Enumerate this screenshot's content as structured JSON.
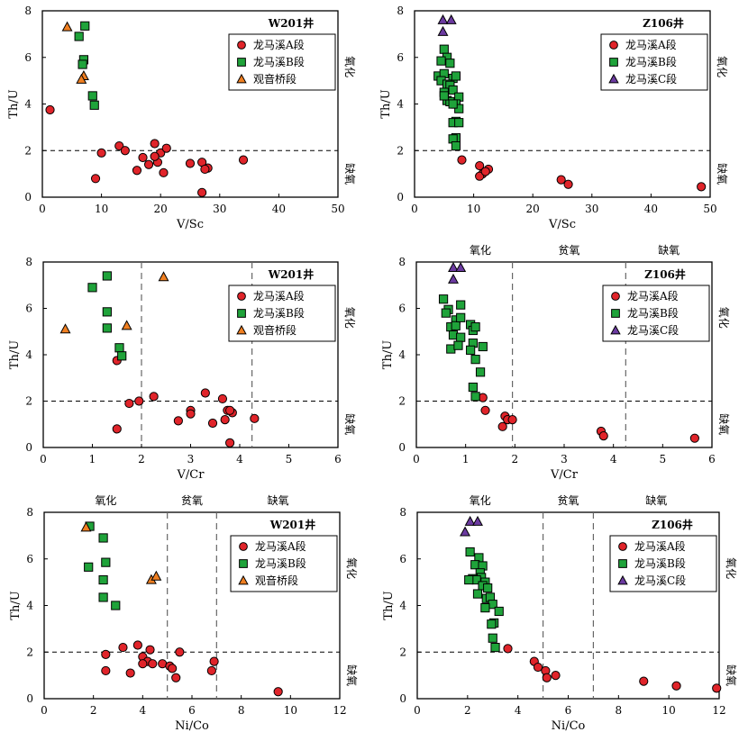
{
  "colors": {
    "seriesA": "#e0242a",
    "seriesB": "#1fa33a",
    "seriesC": "#6b3aa0",
    "seriesG": "#f07f21"
  },
  "chart_data": [
    {
      "type": "scatter",
      "well": "W201井",
      "xlabel": "V/Sc",
      "ylabel": "Th/U",
      "xlim": [
        0,
        50
      ],
      "ylim": [
        0,
        8
      ],
      "xticks": [
        0,
        10,
        20,
        30,
        40,
        50
      ],
      "yticks": [
        0,
        2,
        4,
        6,
        8
      ],
      "hline": 2,
      "vlines": [],
      "side_labels": [
        "氧化",
        "缺氧"
      ],
      "zone_labels": [],
      "legend_position": "top-right",
      "series": [
        {
          "name": "龙马溪A段",
          "marker": "circle",
          "color": "#e0242a",
          "x": [
            1.3,
            13,
            14,
            10,
            17,
            19,
            20,
            19.5,
            18,
            21,
            25,
            16,
            19,
            20.5,
            27,
            28,
            27.5,
            34,
            9,
            27
          ],
          "y": [
            3.75,
            2.2,
            2.0,
            1.9,
            1.7,
            2.3,
            1.9,
            1.5,
            1.4,
            2.1,
            1.45,
            1.15,
            1.75,
            1.05,
            1.5,
            1.25,
            1.2,
            1.6,
            0.8,
            0.2
          ]
        },
        {
          "name": "龙马溪B段",
          "marker": "square",
          "color": "#1fa33a",
          "x": [
            7.2,
            6.2,
            7.0,
            6.8,
            8.5,
            8.8
          ],
          "y": [
            7.35,
            6.9,
            5.9,
            5.7,
            4.35,
            3.95
          ]
        },
        {
          "name": "观音桥段",
          "marker": "triangle",
          "color": "#f07f21",
          "x": [
            4.2,
            7.0,
            6.6
          ],
          "y": [
            7.3,
            5.2,
            5.05
          ]
        }
      ]
    },
    {
      "type": "scatter",
      "well": "Z106井",
      "xlabel": "V/Sc",
      "ylabel": "Th/U",
      "xlim": [
        0,
        50
      ],
      "ylim": [
        0,
        8
      ],
      "xticks": [
        0,
        10,
        20,
        30,
        40,
        50
      ],
      "yticks": [
        0,
        2,
        4,
        6,
        8
      ],
      "hline": 2,
      "vlines": [],
      "side_labels": [
        "氧化",
        "缺氧"
      ],
      "zone_labels": [],
      "legend_position": "top-right",
      "series": [
        {
          "name": "龙马溪A段",
          "marker": "circle",
          "color": "#e0242a",
          "x": [
            8,
            11,
            11.5,
            12.5,
            11,
            12,
            24.8,
            26,
            48.5
          ],
          "y": [
            1.6,
            1.35,
            1.0,
            1.2,
            0.9,
            1.1,
            0.75,
            0.55,
            0.45
          ]
        },
        {
          "name": "龙马溪B段",
          "marker": "square",
          "color": "#1fa33a",
          "x": [
            5,
            5.5,
            4.5,
            6,
            4,
            5,
            6.5,
            7,
            4.5,
            5.5,
            6,
            5,
            6.5,
            7.5,
            5.5,
            7,
            6,
            7.5,
            5,
            6.5,
            7,
            6.5,
            7.5,
            7,
            6.5,
            7
          ],
          "y": [
            6.35,
            6.0,
            5.85,
            5.75,
            5.2,
            5.3,
            5.1,
            5.2,
            5.0,
            4.85,
            4.8,
            4.5,
            4.6,
            4.3,
            4.15,
            4.0,
            4.1,
            3.8,
            4.35,
            4.0,
            3.25,
            3.2,
            3.2,
            2.55,
            2.5,
            2.2
          ]
        },
        {
          "name": "龙马溪C段",
          "marker": "triangle",
          "color": "#6b3aa0",
          "x": [
            4.8,
            6.2,
            4.8
          ],
          "y": [
            7.6,
            7.6,
            7.1
          ]
        }
      ]
    },
    {
      "type": "scatter",
      "well": "W201井",
      "xlabel": "V/Cr",
      "ylabel": "Th/U",
      "xlim": [
        0,
        6
      ],
      "ylim": [
        0,
        8
      ],
      "xticks": [
        0,
        1,
        2,
        3,
        4,
        5,
        6
      ],
      "yticks": [
        0,
        2,
        4,
        6,
        8
      ],
      "hline": 2,
      "vlines": [
        2,
        4.25
      ],
      "side_labels": [
        "氧化",
        "缺氧"
      ],
      "zone_labels": [],
      "legend_position": "top-right",
      "series": [
        {
          "name": "龙马溪A段",
          "marker": "circle",
          "color": "#e0242a",
          "x": [
            1.5,
            1.95,
            2.25,
            2.75,
            3.0,
            3.0,
            3.3,
            3.45,
            3.65,
            3.75,
            3.85,
            3.8,
            3.7,
            1.75,
            1.5,
            3.8,
            4.3
          ],
          "y": [
            3.75,
            2.0,
            2.2,
            1.15,
            1.6,
            1.45,
            2.35,
            1.05,
            2.1,
            1.6,
            1.5,
            0.2,
            1.2,
            1.9,
            0.8,
            1.6,
            1.25
          ]
        },
        {
          "name": "龙马溪B段",
          "marker": "square",
          "color": "#1fa33a",
          "x": [
            1.3,
            1.0,
            1.3,
            1.3,
            1.55,
            1.6
          ],
          "y": [
            7.4,
            6.9,
            5.85,
            5.15,
            4.3,
            3.95
          ]
        },
        {
          "name": "观音桥段",
          "marker": "triangle",
          "color": "#f07f21",
          "x": [
            2.45,
            1.7,
            0.45
          ],
          "y": [
            7.35,
            5.25,
            5.1
          ]
        }
      ]
    },
    {
      "type": "scatter",
      "well": "Z106井",
      "xlabel": "V/Cr",
      "ylabel": "Th/U",
      "xlim": [
        0,
        6
      ],
      "ylim": [
        0,
        8
      ],
      "xticks": [
        0,
        1,
        2,
        3,
        4,
        5,
        6
      ],
      "yticks": [
        0,
        2,
        4,
        6,
        8
      ],
      "hline": 2,
      "vlines": [
        1.95,
        4.25
      ],
      "side_labels": [
        "氧化",
        "缺氧"
      ],
      "zone_labels": [
        "氧化",
        "贫氧",
        "缺氧"
      ],
      "legend_position": "top-right",
      "series": [
        {
          "name": "龙马溪A段",
          "marker": "circle",
          "color": "#e0242a",
          "x": [
            1.35,
            1.4,
            1.8,
            1.75,
            1.85,
            1.95,
            3.75,
            3.8,
            5.65
          ],
          "y": [
            2.15,
            1.6,
            1.35,
            0.9,
            1.2,
            1.2,
            0.7,
            0.5,
            0.4
          ]
        },
        {
          "name": "龙马溪B段",
          "marker": "square",
          "color": "#1fa33a",
          "x": [
            0.55,
            0.65,
            0.9,
            0.8,
            0.6,
            0.7,
            0.8,
            1.1,
            0.9,
            1.15,
            1.2,
            0.75,
            0.9,
            1.15,
            0.7,
            0.85,
            1.35,
            1.1,
            1.2,
            1.3,
            1.15,
            1.2
          ],
          "y": [
            6.4,
            5.95,
            6.15,
            5.5,
            5.8,
            5.2,
            5.25,
            5.3,
            5.6,
            5.05,
            5.2,
            4.85,
            4.75,
            4.5,
            4.25,
            4.4,
            4.35,
            4.2,
            3.8,
            3.25,
            2.6,
            2.2
          ]
        },
        {
          "name": "龙马溪C段",
          "marker": "triangle",
          "color": "#6b3aa0",
          "x": [
            0.75,
            0.9,
            0.75
          ],
          "y": [
            7.75,
            7.75,
            7.25
          ]
        }
      ]
    },
    {
      "type": "scatter",
      "well": "W201井",
      "xlabel": "Ni/Co",
      "ylabel": "Th/U",
      "xlim": [
        0,
        12
      ],
      "ylim": [
        0,
        8
      ],
      "xticks": [
        0,
        2,
        4,
        6,
        8,
        10,
        12
      ],
      "yticks": [
        0,
        2,
        4,
        6,
        8
      ],
      "hline": 2,
      "vlines": [
        5,
        7
      ],
      "side_labels": [
        "氧化",
        "缺氧"
      ],
      "zone_labels": [
        "氧化",
        "贫氧",
        "缺氧"
      ],
      "legend_position": "top-right",
      "series": [
        {
          "name": "龙马溪A段",
          "marker": "circle",
          "color": "#e0242a",
          "x": [
            2.5,
            2.5,
            3.2,
            3.8,
            3.5,
            4.0,
            4.2,
            4.3,
            4.0,
            4.4,
            4.8,
            5.1,
            5.2,
            5.35,
            5.5,
            6.8,
            6.9,
            9.5
          ],
          "y": [
            1.9,
            1.2,
            2.2,
            2.3,
            1.1,
            1.8,
            1.6,
            2.1,
            1.5,
            1.5,
            1.5,
            1.4,
            1.3,
            0.9,
            2.0,
            1.2,
            1.6,
            0.3
          ]
        },
        {
          "name": "龙马溪B段",
          "marker": "square",
          "color": "#1fa33a",
          "x": [
            1.85,
            2.4,
            2.5,
            2.4,
            2.4,
            2.9,
            1.8
          ],
          "y": [
            7.4,
            6.9,
            5.85,
            5.1,
            4.35,
            4.0,
            5.65
          ]
        },
        {
          "name": "观音桥段",
          "marker": "triangle",
          "color": "#f07f21",
          "x": [
            1.7,
            4.35,
            4.55
          ],
          "y": [
            7.35,
            5.1,
            5.25
          ]
        }
      ]
    },
    {
      "type": "scatter",
      "well": "Z106井",
      "xlabel": "Ni/Co",
      "ylabel": "Th/U",
      "xlim": [
        0,
        12
      ],
      "ylim": [
        0,
        8
      ],
      "xticks": [
        0,
        2,
        4,
        6,
        8,
        10,
        12
      ],
      "yticks": [
        0,
        2,
        4,
        6,
        8
      ],
      "hline": 2,
      "vlines": [
        5,
        7
      ],
      "side_labels": [
        "氧化",
        "缺氧"
      ],
      "zone_labels": [
        "氧化",
        "贫氧",
        "缺氧"
      ],
      "legend_position": "top-right",
      "series": [
        {
          "name": "龙马溪A段",
          "marker": "circle",
          "color": "#e0242a",
          "x": [
            3.6,
            4.65,
            4.8,
            5.1,
            5.15,
            5.5,
            9.0,
            10.3,
            11.9
          ],
          "y": [
            2.15,
            1.6,
            1.35,
            1.2,
            0.9,
            1.0,
            0.75,
            0.55,
            0.45
          ]
        },
        {
          "name": "龙马溪B段",
          "marker": "square",
          "color": "#1fa33a",
          "x": [
            2.1,
            2.45,
            2.3,
            2.6,
            2.5,
            2.2,
            2.55,
            2.35,
            2.7,
            2.6,
            2.8,
            2.05,
            2.4,
            2.75,
            2.9,
            3.0,
            3.25,
            2.7,
            3.05,
            2.95,
            3.0,
            3.1
          ],
          "y": [
            6.3,
            6.05,
            5.75,
            5.7,
            5.4,
            5.15,
            5.2,
            5.1,
            5.0,
            4.85,
            4.75,
            5.1,
            4.5,
            4.3,
            4.35,
            4.05,
            3.75,
            3.9,
            3.25,
            3.2,
            2.6,
            2.2
          ]
        },
        {
          "name": "龙马溪C段",
          "marker": "triangle",
          "color": "#6b3aa0",
          "x": [
            2.1,
            2.4,
            1.9
          ],
          "y": [
            7.6,
            7.6,
            7.15
          ]
        }
      ]
    }
  ]
}
